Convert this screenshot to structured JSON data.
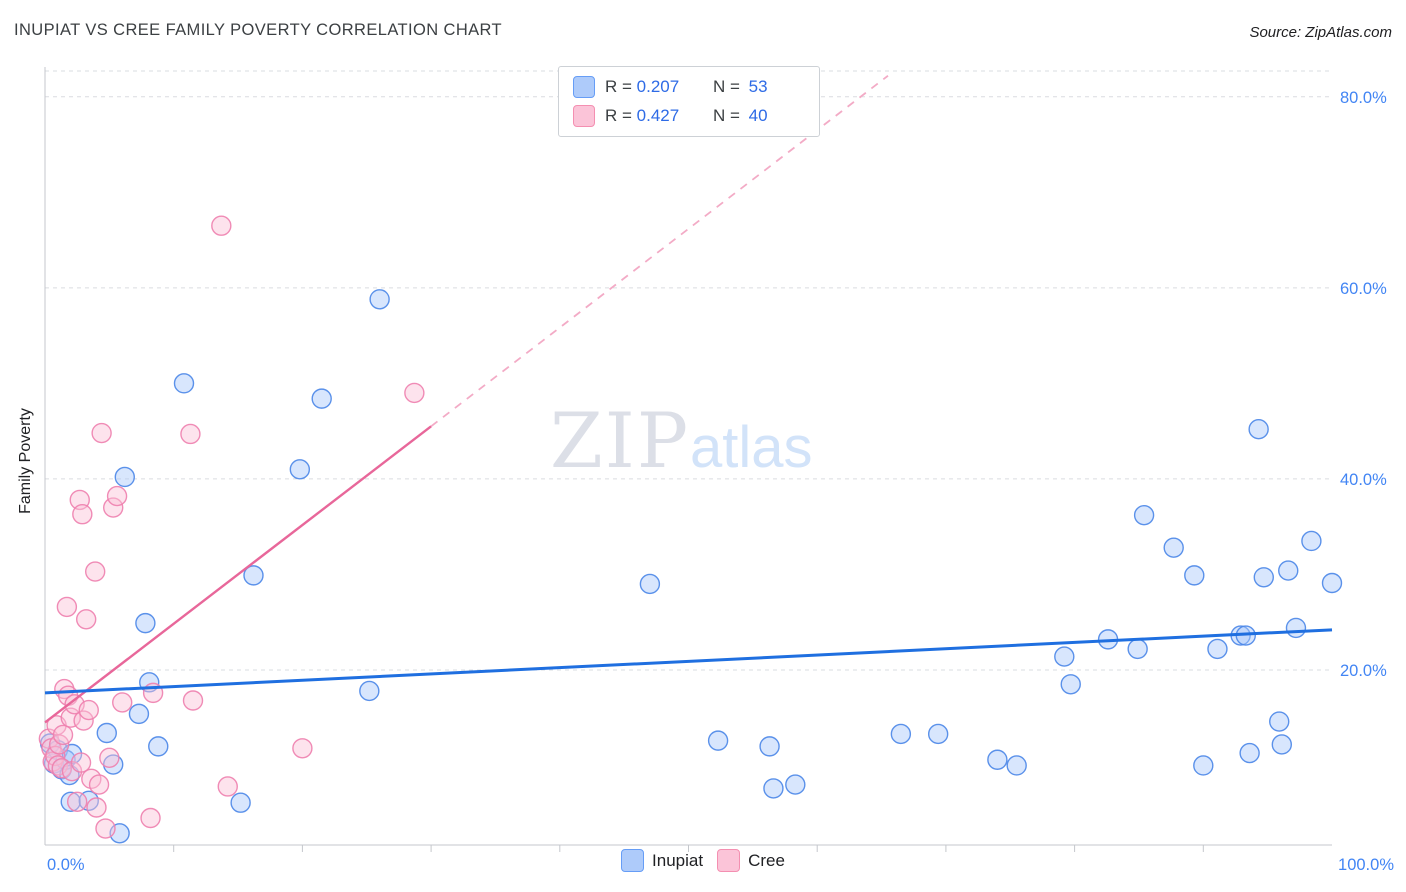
{
  "header": {
    "title": "INUPIAT VS CREE FAMILY POVERTY CORRELATION CHART",
    "source": "Source: ZipAtlas.com"
  },
  "watermark": {
    "zip": "ZIP",
    "atlas": "atlas"
  },
  "legend_box": {
    "rows": [
      {
        "series": "Inupiat",
        "r_label": "R =",
        "r_value": "0.207",
        "n_label": "N =",
        "n_value": "53"
      },
      {
        "series": "Cree",
        "r_label": "R =",
        "r_value": "0.427",
        "n_label": "N =",
        "n_value": "40"
      }
    ]
  },
  "bottom_legend": {
    "items": [
      {
        "label": "Inupiat"
      },
      {
        "label": "Cree"
      }
    ]
  },
  "colors": {
    "axis": "#c4c7cc",
    "grid": "#dadce0",
    "tick_label": "#4285f4",
    "inupiat_fill": "#a8c7fa",
    "inupiat_stroke": "#4a86e8",
    "inupiat_line": "#1f6fe0",
    "cree_fill": "#fbc0d6",
    "cree_stroke": "#ee7fae",
    "cree_line": "#e8679a",
    "cree_dash": "#f3abc6"
  },
  "chart_data": {
    "type": "scatter",
    "title": "INUPIAT VS CREE FAMILY POVERTY CORRELATION CHART",
    "xlabel": "",
    "ylabel": "Family Poverty",
    "x_range": [
      0,
      100
    ],
    "y_range": [
      0,
      83
    ],
    "grid": true,
    "legend_position": "top-center",
    "x_tick_labels": {
      "min": "0.0%",
      "max": "100.0%"
    },
    "x_minor_ticks": [
      10,
      20,
      30,
      40,
      50,
      60,
      70,
      80,
      90
    ],
    "y_ticks": [
      {
        "value": 20,
        "label": "20.0%"
      },
      {
        "value": 40,
        "label": "40.0%"
      },
      {
        "value": 60,
        "label": "60.0%"
      },
      {
        "value": 80,
        "label": "80.0%"
      }
    ],
    "y_top_gridline": 82.7,
    "series": [
      {
        "name": "Inupiat",
        "R": 0.207,
        "N": 53,
        "points": [
          [
            0.4,
            12.3
          ],
          [
            0.7,
            10.2
          ],
          [
            1.0,
            11.6
          ],
          [
            1.3,
            9.6
          ],
          [
            1.6,
            10.6
          ],
          [
            1.9,
            9.0
          ],
          [
            2.1,
            11.2
          ],
          [
            2.0,
            6.2
          ],
          [
            3.4,
            6.3
          ],
          [
            4.8,
            13.4
          ],
          [
            5.3,
            10.1
          ],
          [
            5.8,
            2.9
          ],
          [
            6.2,
            40.2
          ],
          [
            7.3,
            15.4
          ],
          [
            7.8,
            24.9
          ],
          [
            8.1,
            18.7
          ],
          [
            8.8,
            12.0
          ],
          [
            10.8,
            50.0
          ],
          [
            15.2,
            6.1
          ],
          [
            16.2,
            29.9
          ],
          [
            19.8,
            41.0
          ],
          [
            21.5,
            48.4
          ],
          [
            25.2,
            17.8
          ],
          [
            26.0,
            58.8
          ],
          [
            47.0,
            29.0
          ],
          [
            52.3,
            12.6
          ],
          [
            56.3,
            12.0
          ],
          [
            56.6,
            7.6
          ],
          [
            58.3,
            8.0
          ],
          [
            66.5,
            13.3
          ],
          [
            69.4,
            13.3
          ],
          [
            74.0,
            10.6
          ],
          [
            75.5,
            10.0
          ],
          [
            79.2,
            21.4
          ],
          [
            79.7,
            18.5
          ],
          [
            82.6,
            23.2
          ],
          [
            84.9,
            22.2
          ],
          [
            85.4,
            36.2
          ],
          [
            87.7,
            32.8
          ],
          [
            89.3,
            29.9
          ],
          [
            90.0,
            10.0
          ],
          [
            91.1,
            22.2
          ],
          [
            92.9,
            23.6
          ],
          [
            93.3,
            23.6
          ],
          [
            93.6,
            11.3
          ],
          [
            94.3,
            45.2
          ],
          [
            94.7,
            29.7
          ],
          [
            95.9,
            14.6
          ],
          [
            96.1,
            12.2
          ],
          [
            96.6,
            30.4
          ],
          [
            97.2,
            24.4
          ],
          [
            98.4,
            33.5
          ],
          [
            100.0,
            29.1
          ]
        ],
        "trend": {
          "x0": 0,
          "y0": 17.6,
          "x1": 100,
          "y1": 24.2,
          "style": "solid"
        }
      },
      {
        "name": "Cree",
        "R": 0.427,
        "N": 40,
        "points": [
          [
            0.3,
            12.8
          ],
          [
            0.5,
            11.8
          ],
          [
            0.6,
            10.4
          ],
          [
            0.8,
            11.0
          ],
          [
            0.9,
            14.2
          ],
          [
            1.0,
            10.0
          ],
          [
            1.1,
            12.2
          ],
          [
            1.3,
            9.7
          ],
          [
            1.4,
            13.2
          ],
          [
            1.5,
            18.0
          ],
          [
            1.7,
            26.6
          ],
          [
            1.8,
            17.3
          ],
          [
            2.0,
            15.0
          ],
          [
            2.1,
            9.4
          ],
          [
            2.3,
            16.4
          ],
          [
            2.5,
            6.2
          ],
          [
            2.7,
            37.8
          ],
          [
            2.8,
            10.3
          ],
          [
            2.9,
            36.3
          ],
          [
            3.0,
            14.7
          ],
          [
            3.2,
            25.3
          ],
          [
            3.4,
            15.8
          ],
          [
            3.6,
            8.6
          ],
          [
            3.9,
            30.3
          ],
          [
            4.0,
            5.6
          ],
          [
            4.2,
            8.0
          ],
          [
            4.4,
            44.8
          ],
          [
            4.7,
            3.4
          ],
          [
            5.0,
            10.8
          ],
          [
            5.3,
            37.0
          ],
          [
            5.6,
            38.2
          ],
          [
            6.0,
            16.6
          ],
          [
            8.2,
            4.5
          ],
          [
            8.4,
            17.6
          ],
          [
            11.3,
            44.7
          ],
          [
            11.5,
            16.8
          ],
          [
            13.7,
            66.5
          ],
          [
            14.2,
            7.8
          ],
          [
            20.0,
            11.8
          ],
          [
            28.7,
            49.0
          ]
        ],
        "trend": {
          "x0": 0,
          "y0": 14.5,
          "x1": 30,
          "y1": 45.5,
          "style": "solid",
          "dashed_extension": {
            "x1": 65.5,
            "y1": 82.2
          }
        }
      }
    ]
  }
}
